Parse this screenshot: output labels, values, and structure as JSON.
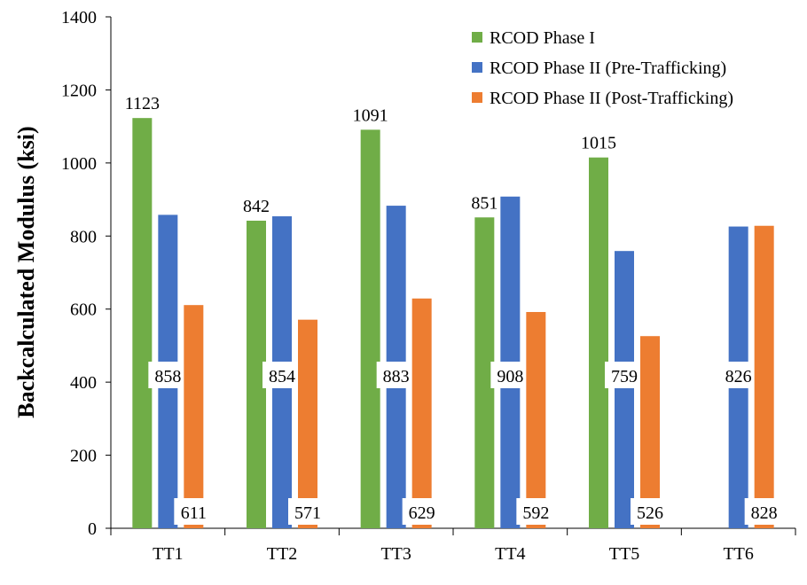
{
  "chart_data": {
    "type": "bar",
    "title": "",
    "xlabel": "",
    "ylabel": "Backcalculated Modulus (ksi)",
    "ylim": [
      0,
      1400
    ],
    "yticks": [
      0,
      200,
      400,
      600,
      800,
      1000,
      1200,
      1400
    ],
    "grid": false,
    "legend_position": "top-right",
    "categories": [
      "TT1",
      "TT2",
      "TT3",
      "TT4",
      "TT5",
      "TT6"
    ],
    "series": [
      {
        "name": "RCOD Phase I",
        "color": "#70ad47",
        "values": [
          1123,
          842,
          1091,
          851,
          1015,
          null
        ]
      },
      {
        "name": "RCOD Phase II (Pre-Trafficking)",
        "color": "#4472c4",
        "values": [
          858,
          854,
          883,
          908,
          759,
          826
        ]
      },
      {
        "name": "RCOD Phase II (Post-Trafficking)",
        "color": "#ed7d31",
        "values": [
          611,
          571,
          629,
          592,
          526,
          828
        ]
      }
    ]
  }
}
